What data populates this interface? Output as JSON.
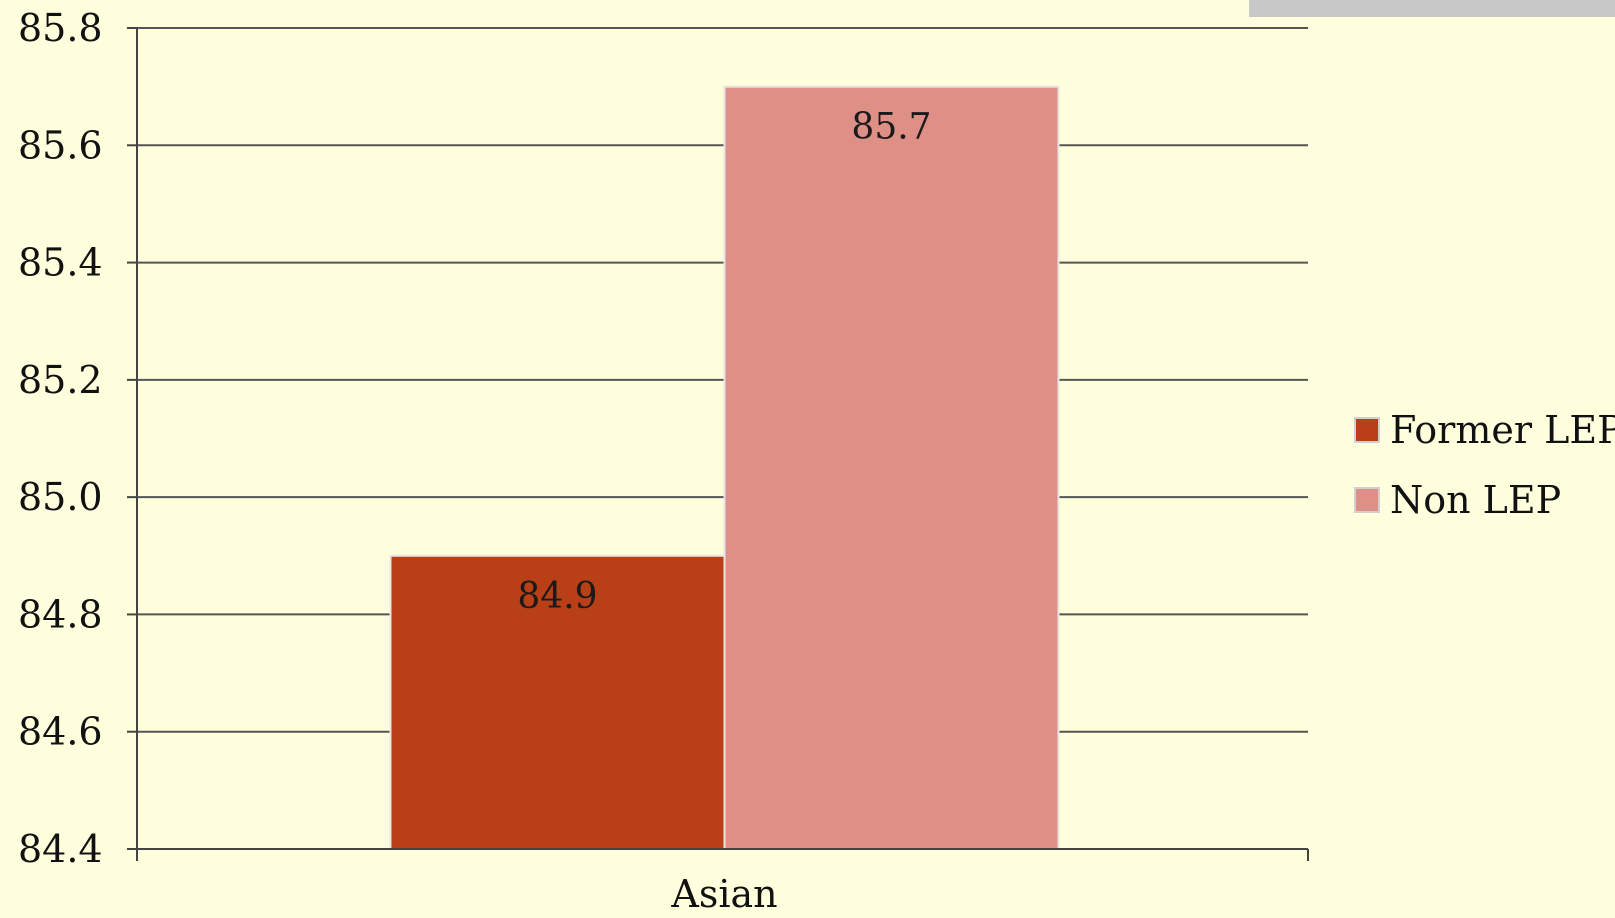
{
  "chart_data": {
    "type": "bar",
    "title": "",
    "xlabel": "",
    "ylabel": "",
    "categories": [
      "Asian"
    ],
    "series": [
      {
        "name": "Former LEP",
        "values": [
          84.9
        ],
        "color": "#B83F16",
        "data_labels": [
          "84.9"
        ]
      },
      {
        "name": "Non LEP",
        "values": [
          85.7
        ],
        "color": "#DE8F86",
        "data_labels": [
          "85.7"
        ]
      }
    ],
    "ylim": [
      84.4,
      85.8
    ],
    "yticks": [
      84.4,
      84.6,
      84.8,
      85.0,
      85.2,
      85.4,
      85.6,
      85.8
    ],
    "ytick_labels": [
      "84.4",
      "84.6",
      "84.8",
      "85.0",
      "85.2",
      "85.4",
      "85.6",
      "85.8"
    ],
    "grid": true,
    "legend_position": "right"
  },
  "colors": {
    "background": "#FFFFDD",
    "gridline": "#555555",
    "axis": "#444444"
  }
}
